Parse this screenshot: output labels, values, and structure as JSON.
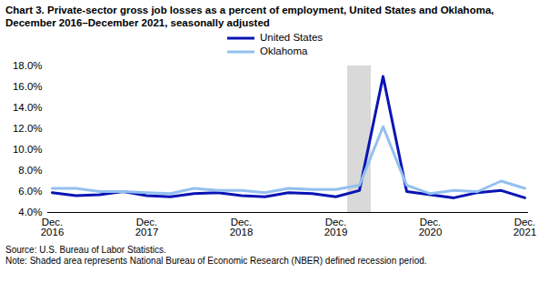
{
  "chart_data": {
    "type": "line",
    "title": "Chart 3. Private-sector gross job losses as a percent of employment, United States and Oklahoma, December 2016–December 2021, seasonally adjusted",
    "categories": [
      "Dec. 2016",
      null,
      null,
      null,
      "Dec. 2017",
      null,
      null,
      null,
      "Dec. 2018",
      null,
      null,
      null,
      "Dec. 2019",
      null,
      null,
      null,
      "Dec. 2020",
      null,
      null,
      null,
      "Dec. 2021"
    ],
    "series": [
      {
        "name": "United States",
        "color": "#0a14b4",
        "values": [
          5.9,
          5.6,
          5.7,
          6.0,
          5.6,
          5.5,
          5.8,
          5.9,
          5.6,
          5.5,
          5.9,
          5.8,
          5.5,
          6.1,
          17.0,
          6.0,
          5.7,
          5.4,
          5.9,
          6.1,
          5.4
        ]
      },
      {
        "name": "Oklahoma",
        "color": "#93c0f0",
        "values": [
          6.3,
          6.3,
          6.0,
          6.0,
          5.9,
          5.8,
          6.3,
          6.1,
          6.1,
          5.9,
          6.3,
          6.2,
          6.2,
          6.6,
          12.2,
          6.6,
          5.8,
          6.1,
          6.0,
          7.0,
          6.3
        ]
      }
    ],
    "ylim": [
      4,
      18
    ],
    "yticks": [
      {
        "value": 4,
        "label": "4.0%"
      },
      {
        "value": 6,
        "label": "6.0%"
      },
      {
        "value": 8,
        "label": "8.0%"
      },
      {
        "value": 10,
        "label": "10.0%"
      },
      {
        "value": 12,
        "label": "12.0%"
      },
      {
        "value": 14,
        "label": "14.0%"
      },
      {
        "value": 16,
        "label": "16.0%"
      },
      {
        "value": 18,
        "label": "18.0%"
      }
    ],
    "grid": false,
    "legend": "top",
    "shaded_span": [
      12.5,
      13.5
    ],
    "source": "Source: U.S. Bureau of Labor Statistics.",
    "note": "Note: Shaded area represents National Bureau of Economic Research (NBER) defined recession period."
  }
}
